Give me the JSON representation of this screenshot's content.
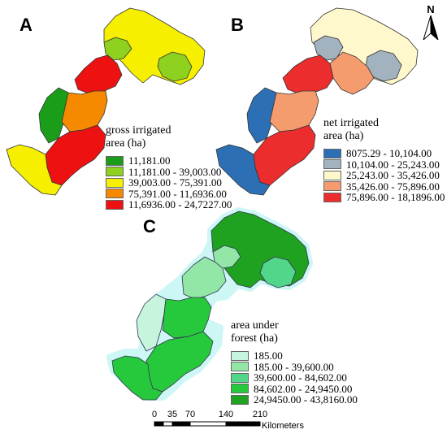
{
  "north_arrow": {
    "label": "N"
  },
  "panels": [
    {
      "letter": "A",
      "legend_title_lines": [
        "gross irrigated",
        "area (ha)"
      ],
      "legend": [
        {
          "label": "11,181.00",
          "color": "#1a9e1a"
        },
        {
          "label": "11,181.00 - 39,003.00",
          "color": "#8ed11f"
        },
        {
          "label": "39,003.00 - 75,391.00",
          "color": "#f6f000"
        },
        {
          "label": "75,391.00 - 11,6936.00",
          "color": "#f58a00"
        },
        {
          "label": "11,6936.00 - 24,7227.00",
          "color": "#ee1111"
        }
      ]
    },
    {
      "letter": "B",
      "legend_title_lines": [
        "net irrigated",
        "area (ha)"
      ],
      "legend": [
        {
          "label": "8075.29 - 10,104.00",
          "color": "#2c6fb4"
        },
        {
          "label": "10,104.00 - 25,243.00",
          "color": "#a2b2bf"
        },
        {
          "label": "25,243.00 - 35,426.00",
          "color": "#fff8cc"
        },
        {
          "label": "35,426.00 - 75,896.00",
          "color": "#f59c6e"
        },
        {
          "label": "75,896.00 - 18,1896.00",
          "color": "#ec2d2d"
        }
      ]
    },
    {
      "letter": "C",
      "legend_title_lines": [
        "area under",
        "forest (ha)"
      ],
      "legend": [
        {
          "label": "185.00",
          "color": "#c6f4dc"
        },
        {
          "label": "185.00 - 39,600.00",
          "color": "#92e6a6"
        },
        {
          "label": "39,600.00 - 84,602.00",
          "color": "#52d68a"
        },
        {
          "label": "84,602.00 - 24,9450.00",
          "color": "#27c93c"
        },
        {
          "label": "24,9450.00 - 43,8160.00",
          "color": "#1fa21f"
        }
      ]
    }
  ],
  "scale_bar": {
    "ticks": [
      "0",
      "35",
      "70",
      "140",
      "210"
    ],
    "units": "Kilometers"
  }
}
